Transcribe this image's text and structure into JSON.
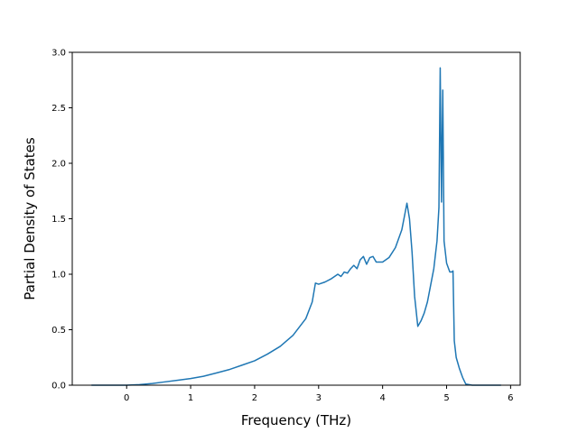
{
  "chart_data": {
    "type": "line",
    "xlabel": "Frequency (THz)",
    "ylabel": "Partial Density of States",
    "xlim": [
      -0.85,
      6.15
    ],
    "ylim": [
      0.0,
      3.0
    ],
    "x_ticks": [
      0,
      1,
      2,
      3,
      4,
      5,
      6
    ],
    "x_tick_labels": [
      "0",
      "1",
      "2",
      "3",
      "4",
      "5",
      "6"
    ],
    "y_ticks": [
      0.0,
      0.5,
      1.0,
      1.5,
      2.0,
      2.5,
      3.0
    ],
    "y_tick_labels": [
      "0.0",
      "0.5",
      "1.0",
      "1.5",
      "2.0",
      "2.5",
      "3.0"
    ],
    "grid": false,
    "line_color": "#1f77b4",
    "series": [
      {
        "x": [
          -0.55,
          -0.3,
          0.0,
          0.2,
          0.4,
          0.6,
          0.8,
          1.0,
          1.2,
          1.4,
          1.6,
          1.8,
          2.0,
          2.2,
          2.4,
          2.6,
          2.8,
          2.9,
          2.95,
          3.0,
          3.1,
          3.2,
          3.3,
          3.35,
          3.4,
          3.45,
          3.5,
          3.55,
          3.6,
          3.65,
          3.7,
          3.75,
          3.8,
          3.85,
          3.9,
          4.0,
          4.1,
          4.2,
          4.3,
          4.35,
          4.38,
          4.42,
          4.46,
          4.5,
          4.55,
          4.6,
          4.65,
          4.7,
          4.75,
          4.8,
          4.85,
          4.88,
          4.9,
          4.92,
          4.94,
          4.96,
          5.0,
          5.05,
          5.08,
          5.1,
          5.12,
          5.15,
          5.2,
          5.25,
          5.3,
          5.4,
          5.6,
          5.85
        ],
        "y": [
          0.0,
          0.0,
          0.0,
          0.005,
          0.015,
          0.03,
          0.045,
          0.06,
          0.08,
          0.11,
          0.14,
          0.18,
          0.22,
          0.28,
          0.35,
          0.45,
          0.6,
          0.75,
          0.92,
          0.91,
          0.93,
          0.96,
          1.0,
          0.98,
          1.02,
          1.01,
          1.05,
          1.08,
          1.05,
          1.13,
          1.16,
          1.09,
          1.15,
          1.16,
          1.11,
          1.11,
          1.15,
          1.24,
          1.4,
          1.55,
          1.64,
          1.5,
          1.2,
          0.8,
          0.53,
          0.58,
          0.65,
          0.75,
          0.9,
          1.05,
          1.3,
          1.6,
          2.86,
          1.65,
          2.66,
          1.3,
          1.1,
          1.02,
          1.02,
          1.03,
          0.4,
          0.25,
          0.15,
          0.07,
          0.01,
          0.0,
          0.0,
          0.0
        ]
      }
    ]
  }
}
